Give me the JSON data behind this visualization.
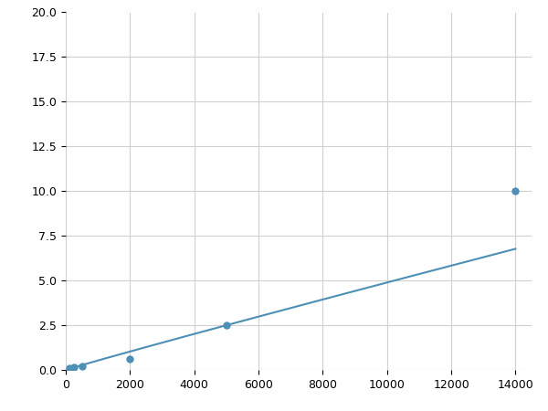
{
  "x": [
    125,
    250,
    500,
    2000,
    5000,
    14000
  ],
  "y": [
    0.1,
    0.15,
    0.2,
    0.6,
    2.5,
    10.0
  ],
  "line_color": "#4d8fb5",
  "marker_color": "#4d8fb5",
  "marker_size": 5,
  "xlim": [
    0,
    14500
  ],
  "ylim": [
    0,
    20
  ],
  "xticks": [
    0,
    2000,
    4000,
    6000,
    8000,
    10000,
    12000,
    14000
  ],
  "yticks": [
    0.0,
    2.5,
    5.0,
    7.5,
    10.0,
    12.5,
    15.0,
    17.5,
    20.0
  ],
  "grid_color": "#d0d0d0",
  "background_color": "#ffffff",
  "figsize": [
    6.0,
    4.5
  ],
  "dpi": 100
}
